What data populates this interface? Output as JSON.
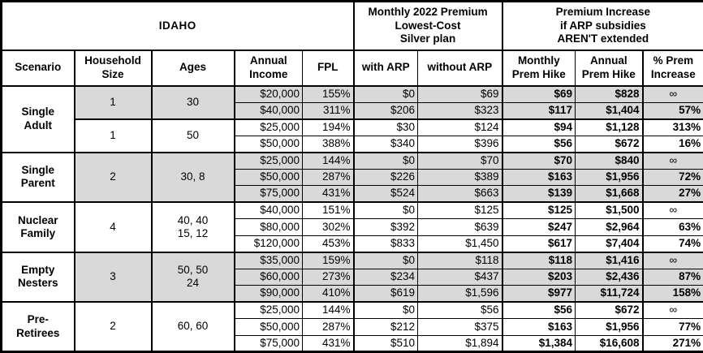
{
  "banner": {
    "state": "IDAHO",
    "premium_header": "Monthly 2022 Premium\nLowest-Cost\nSilver plan",
    "increase_header": "Premium Increase\nif ARP subsidies\nAREN'T extended"
  },
  "columns": [
    "Scenario",
    "Household\nSize",
    "Ages",
    "Annual\nIncome",
    "FPL",
    "with ARP",
    "without ARP",
    "Monthly\nPrem Hike",
    "Annual\nPrem Hike",
    "% Prem\nIncrease"
  ],
  "colors": {
    "shaded_row": "#d9d9d9",
    "border": "#000000",
    "background": "#ffffff"
  },
  "infinity_symbol": "∞",
  "groups": [
    {
      "scenario": "Single\nAdult",
      "subgroups": [
        {
          "household_size": "1",
          "ages": "30",
          "shaded": true,
          "rows": [
            {
              "income": "$20,000",
              "fpl": "155%",
              "with_arp": "$0",
              "without_arp": "$69",
              "monthly_hike": "$69",
              "annual_hike": "$828",
              "pct_increase": "∞"
            },
            {
              "income": "$40,000",
              "fpl": "311%",
              "with_arp": "$206",
              "without_arp": "$323",
              "monthly_hike": "$117",
              "annual_hike": "$1,404",
              "pct_increase": "57%"
            }
          ]
        },
        {
          "household_size": "1",
          "ages": "50",
          "shaded": false,
          "rows": [
            {
              "income": "$25,000",
              "fpl": "194%",
              "with_arp": "$30",
              "without_arp": "$124",
              "monthly_hike": "$94",
              "annual_hike": "$1,128",
              "pct_increase": "313%"
            },
            {
              "income": "$50,000",
              "fpl": "388%",
              "with_arp": "$340",
              "without_arp": "$396",
              "monthly_hike": "$56",
              "annual_hike": "$672",
              "pct_increase": "16%"
            }
          ]
        }
      ]
    },
    {
      "scenario": "Single\nParent",
      "subgroups": [
        {
          "household_size": "2",
          "ages": "30, 8",
          "shaded": true,
          "rows": [
            {
              "income": "$25,000",
              "fpl": "144%",
              "with_arp": "$0",
              "without_arp": "$70",
              "monthly_hike": "$70",
              "annual_hike": "$840",
              "pct_increase": "∞"
            },
            {
              "income": "$50,000",
              "fpl": "287%",
              "with_arp": "$226",
              "without_arp": "$389",
              "monthly_hike": "$163",
              "annual_hike": "$1,956",
              "pct_increase": "72%"
            },
            {
              "income": "$75,000",
              "fpl": "431%",
              "with_arp": "$524",
              "without_arp": "$663",
              "monthly_hike": "$139",
              "annual_hike": "$1,668",
              "pct_increase": "27%"
            }
          ]
        }
      ]
    },
    {
      "scenario": "Nuclear\nFamily",
      "subgroups": [
        {
          "household_size": "4",
          "ages": "40, 40\n15, 12",
          "shaded": false,
          "rows": [
            {
              "income": "$40,000",
              "fpl": "151%",
              "with_arp": "$0",
              "without_arp": "$125",
              "monthly_hike": "$125",
              "annual_hike": "$1,500",
              "pct_increase": "∞"
            },
            {
              "income": "$80,000",
              "fpl": "302%",
              "with_arp": "$392",
              "without_arp": "$639",
              "monthly_hike": "$247",
              "annual_hike": "$2,964",
              "pct_increase": "63%"
            },
            {
              "income": "$120,000",
              "fpl": "453%",
              "with_arp": "$833",
              "without_arp": "$1,450",
              "monthly_hike": "$617",
              "annual_hike": "$7,404",
              "pct_increase": "74%"
            }
          ]
        }
      ]
    },
    {
      "scenario": "Empty\nNesters",
      "subgroups": [
        {
          "household_size": "3",
          "ages": "50, 50\n24",
          "shaded": true,
          "rows": [
            {
              "income": "$35,000",
              "fpl": "159%",
              "with_arp": "$0",
              "without_arp": "$118",
              "monthly_hike": "$118",
              "annual_hike": "$1,416",
              "pct_increase": "∞"
            },
            {
              "income": "$60,000",
              "fpl": "273%",
              "with_arp": "$234",
              "without_arp": "$437",
              "monthly_hike": "$203",
              "annual_hike": "$2,436",
              "pct_increase": "87%"
            },
            {
              "income": "$90,000",
              "fpl": "410%",
              "with_arp": "$619",
              "without_arp": "$1,596",
              "monthly_hike": "$977",
              "annual_hike": "$11,724",
              "pct_increase": "158%"
            }
          ]
        }
      ]
    },
    {
      "scenario": "Pre-\nRetirees",
      "subgroups": [
        {
          "household_size": "2",
          "ages": "60, 60",
          "shaded": false,
          "rows": [
            {
              "income": "$25,000",
              "fpl": "144%",
              "with_arp": "$0",
              "without_arp": "$56",
              "monthly_hike": "$56",
              "annual_hike": "$672",
              "pct_increase": "∞"
            },
            {
              "income": "$50,000",
              "fpl": "287%",
              "with_arp": "$212",
              "without_arp": "$375",
              "monthly_hike": "$163",
              "annual_hike": "$1,956",
              "pct_increase": "77%"
            },
            {
              "income": "$75,000",
              "fpl": "431%",
              "with_arp": "$510",
              "without_arp": "$1,894",
              "monthly_hike": "$1,384",
              "annual_hike": "$16,608",
              "pct_increase": "271%"
            }
          ]
        }
      ]
    }
  ],
  "chart_data": {
    "type": "table",
    "title": "IDAHO",
    "columns": [
      "Scenario",
      "Household Size",
      "Ages",
      "Annual Income",
      "FPL",
      "with ARP",
      "without ARP",
      "Monthly Prem Hike",
      "Annual Prem Hike",
      "% Prem Increase"
    ],
    "rows": [
      [
        "Single Adult",
        "1",
        "30",
        "$20,000",
        "155%",
        "$0",
        "$69",
        "$69",
        "$828",
        "∞"
      ],
      [
        "Single Adult",
        "1",
        "30",
        "$40,000",
        "311%",
        "$206",
        "$323",
        "$117",
        "$1,404",
        "57%"
      ],
      [
        "Single Adult",
        "1",
        "50",
        "$25,000",
        "194%",
        "$30",
        "$124",
        "$94",
        "$1,128",
        "313%"
      ],
      [
        "Single Adult",
        "1",
        "50",
        "$50,000",
        "388%",
        "$340",
        "$396",
        "$56",
        "$672",
        "16%"
      ],
      [
        "Single Parent",
        "2",
        "30, 8",
        "$25,000",
        "144%",
        "$0",
        "$70",
        "$70",
        "$840",
        "∞"
      ],
      [
        "Single Parent",
        "2",
        "30, 8",
        "$50,000",
        "287%",
        "$226",
        "$389",
        "$163",
        "$1,956",
        "72%"
      ],
      [
        "Single Parent",
        "2",
        "30, 8",
        "$75,000",
        "431%",
        "$524",
        "$663",
        "$139",
        "$1,668",
        "27%"
      ],
      [
        "Nuclear Family",
        "4",
        "40, 40, 15, 12",
        "$40,000",
        "151%",
        "$0",
        "$125",
        "$125",
        "$1,500",
        "∞"
      ],
      [
        "Nuclear Family",
        "4",
        "40, 40, 15, 12",
        "$80,000",
        "302%",
        "$392",
        "$639",
        "$247",
        "$2,964",
        "63%"
      ],
      [
        "Nuclear Family",
        "4",
        "40, 40, 15, 12",
        "$120,000",
        "453%",
        "$833",
        "$1,450",
        "$617",
        "$7,404",
        "74%"
      ],
      [
        "Empty Nesters",
        "3",
        "50, 50, 24",
        "$35,000",
        "159%",
        "$0",
        "$118",
        "$118",
        "$1,416",
        "∞"
      ],
      [
        "Empty Nesters",
        "3",
        "50, 50, 24",
        "$60,000",
        "273%",
        "$234",
        "$437",
        "$203",
        "$2,436",
        "87%"
      ],
      [
        "Empty Nesters",
        "3",
        "50, 50, 24",
        "$90,000",
        "410%",
        "$619",
        "$1,596",
        "$977",
        "$11,724",
        "158%"
      ],
      [
        "Pre-Retirees",
        "2",
        "60, 60",
        "$25,000",
        "144%",
        "$0",
        "$56",
        "$56",
        "$672",
        "∞"
      ],
      [
        "Pre-Retirees",
        "2",
        "60, 60",
        "$50,000",
        "287%",
        "$212",
        "$375",
        "$163",
        "$1,956",
        "77%"
      ],
      [
        "Pre-Retirees",
        "2",
        "60, 60",
        "$75,000",
        "431%",
        "$510",
        "$1,894",
        "$1,384",
        "$16,608",
        "271%"
      ]
    ]
  }
}
